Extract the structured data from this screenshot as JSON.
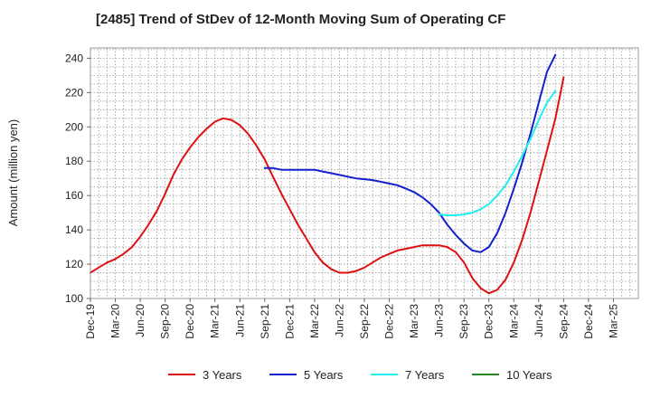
{
  "chart_data": {
    "type": "line",
    "title": "[2485]  Trend of StDev of 12-Month Moving Sum of Operating CF",
    "xlabel": "",
    "ylabel": "Amount (million yen)",
    "ylim": [
      100,
      246
    ],
    "yticks": [
      100,
      120,
      140,
      160,
      180,
      200,
      220,
      240
    ],
    "x_tick_labels": [
      "Dec-19",
      "Mar-20",
      "Jun-20",
      "Sep-20",
      "Dec-20",
      "Mar-21",
      "Jun-21",
      "Sep-21",
      "Dec-21",
      "Mar-22",
      "Jun-22",
      "Sep-22",
      "Dec-22",
      "Mar-23",
      "Jun-23",
      "Sep-23",
      "Dec-23",
      "Mar-24",
      "Jun-24",
      "Sep-24",
      "Dec-24",
      "Mar-25"
    ],
    "grid": true,
    "legend_position": "bottom",
    "series": [
      {
        "name": "3 Years",
        "color": "#dd1111",
        "points": [
          [
            0,
            115
          ],
          [
            0.33,
            118
          ],
          [
            0.67,
            121
          ],
          [
            1,
            123
          ],
          [
            1.33,
            126
          ],
          [
            1.67,
            130
          ],
          [
            2,
            136
          ],
          [
            2.33,
            143
          ],
          [
            2.67,
            151
          ],
          [
            3,
            161
          ],
          [
            3.33,
            172
          ],
          [
            3.67,
            181
          ],
          [
            4,
            188
          ],
          [
            4.33,
            194
          ],
          [
            4.67,
            199
          ],
          [
            5,
            203
          ],
          [
            5.33,
            205
          ],
          [
            5.67,
            204
          ],
          [
            6,
            201
          ],
          [
            6.33,
            196
          ],
          [
            6.67,
            189
          ],
          [
            7,
            181
          ],
          [
            7.33,
            171
          ],
          [
            7.67,
            161
          ],
          [
            8,
            152
          ],
          [
            8.33,
            143
          ],
          [
            8.67,
            135
          ],
          [
            9,
            127
          ],
          [
            9.33,
            121
          ],
          [
            9.67,
            117
          ],
          [
            10,
            115
          ],
          [
            10.33,
            115
          ],
          [
            10.67,
            116
          ],
          [
            11,
            118
          ],
          [
            11.33,
            121
          ],
          [
            11.67,
            124
          ],
          [
            12,
            126
          ],
          [
            12.33,
            128
          ],
          [
            12.67,
            129
          ],
          [
            13,
            130
          ],
          [
            13.33,
            131
          ],
          [
            13.67,
            131
          ],
          [
            14,
            131
          ],
          [
            14.33,
            130
          ],
          [
            14.67,
            127
          ],
          [
            15,
            121
          ],
          [
            15.33,
            112
          ],
          [
            15.67,
            106
          ],
          [
            16,
            103
          ],
          [
            16.33,
            105
          ],
          [
            16.67,
            111
          ],
          [
            17,
            121
          ],
          [
            17.33,
            134
          ],
          [
            17.67,
            150
          ],
          [
            18,
            168
          ],
          [
            18.33,
            186
          ],
          [
            18.67,
            205
          ],
          [
            19,
            229
          ]
        ]
      },
      {
        "name": "5 Years",
        "color": "#1122cc",
        "points": [
          [
            7,
            176
          ],
          [
            7.33,
            176
          ],
          [
            7.67,
            175
          ],
          [
            8,
            175
          ],
          [
            8.33,
            175
          ],
          [
            8.67,
            175
          ],
          [
            9,
            175
          ],
          [
            9.33,
            174
          ],
          [
            9.67,
            173
          ],
          [
            10,
            172
          ],
          [
            10.33,
            171
          ],
          [
            10.67,
            170
          ],
          [
            11,
            169.5
          ],
          [
            11.33,
            169
          ],
          [
            11.67,
            168
          ],
          [
            12,
            167
          ],
          [
            12.33,
            166
          ],
          [
            12.67,
            164
          ],
          [
            13,
            162
          ],
          [
            13.33,
            159
          ],
          [
            13.67,
            155
          ],
          [
            14,
            150
          ],
          [
            14.33,
            143
          ],
          [
            14.67,
            137
          ],
          [
            15,
            132
          ],
          [
            15.33,
            128
          ],
          [
            15.67,
            127
          ],
          [
            16,
            130
          ],
          [
            16.33,
            138
          ],
          [
            16.67,
            150
          ],
          [
            17,
            164
          ],
          [
            17.33,
            179
          ],
          [
            17.67,
            196
          ],
          [
            18,
            214
          ],
          [
            18.33,
            232
          ],
          [
            18.67,
            242
          ]
        ]
      },
      {
        "name": "7 Years",
        "color": "#22eeee",
        "points": [
          [
            14,
            149
          ],
          [
            14.33,
            148.5
          ],
          [
            14.67,
            148.5
          ],
          [
            15,
            149
          ],
          [
            15.33,
            150
          ],
          [
            15.67,
            152
          ],
          [
            16,
            155
          ],
          [
            16.33,
            160
          ],
          [
            16.67,
            166
          ],
          [
            17,
            174
          ],
          [
            17.33,
            183
          ],
          [
            17.67,
            193
          ],
          [
            18,
            204
          ],
          [
            18.33,
            214
          ],
          [
            18.67,
            221
          ]
        ]
      },
      {
        "name": "10 Years",
        "color": "#228822",
        "points": []
      }
    ]
  }
}
